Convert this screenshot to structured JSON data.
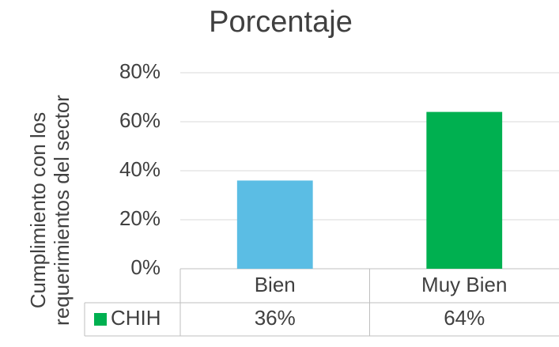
{
  "chart_data": {
    "type": "bar",
    "title": "Porcentaje",
    "y_label": "Cumplimiento con los requerimientos del sector",
    "categories": [
      "Bien",
      "Muy Bien"
    ],
    "series": [
      {
        "name": "CHIH",
        "color": "#00B050",
        "values": [
          36,
          64
        ],
        "value_labels": [
          "36%",
          "64%"
        ],
        "point_colors": [
          "#5BBDE4",
          "#00B050"
        ]
      }
    ],
    "ylim": [
      0,
      80
    ],
    "yticks": [
      {
        "value": 0,
        "label": "0%"
      },
      {
        "value": 20,
        "label": "20%"
      },
      {
        "value": 40,
        "label": "40%"
      },
      {
        "value": 60,
        "label": "60%"
      },
      {
        "value": 80,
        "label": "80%"
      }
    ],
    "grid": true,
    "data_table": true
  }
}
